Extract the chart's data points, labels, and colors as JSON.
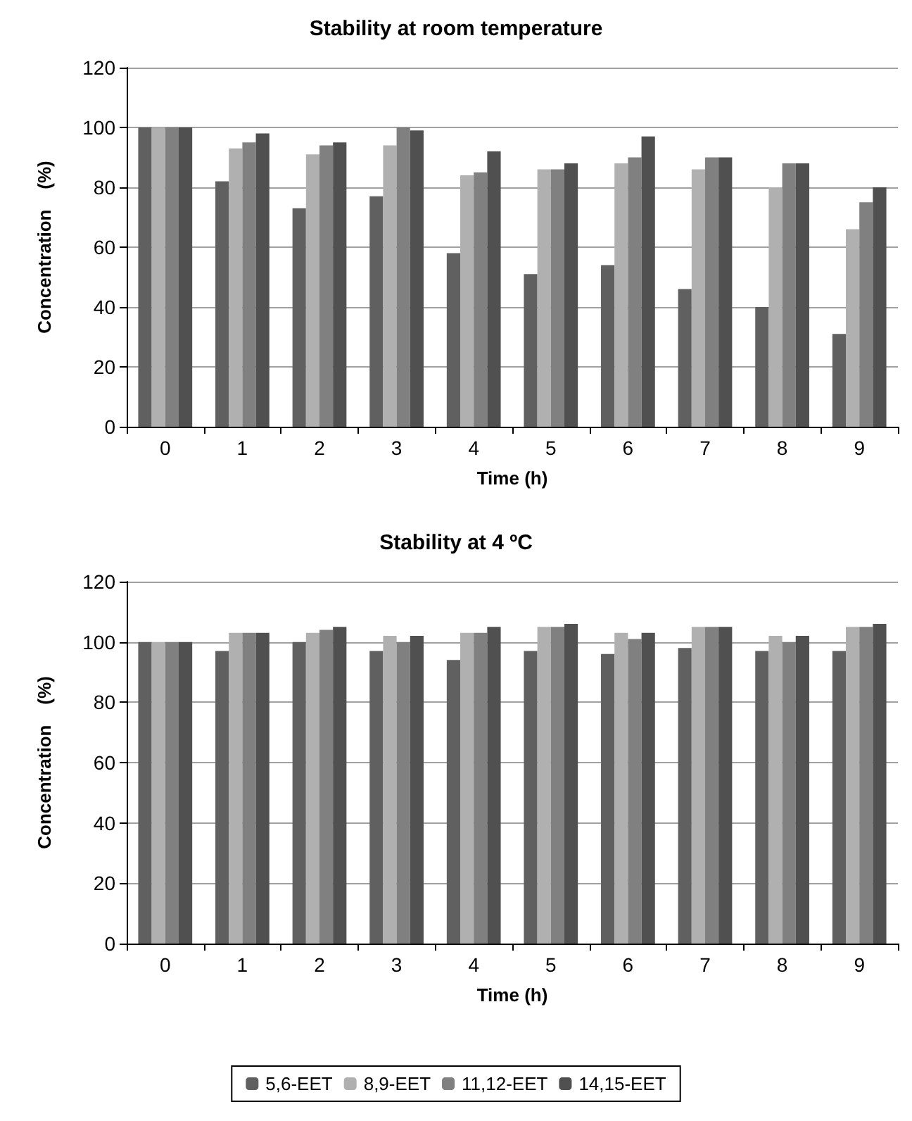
{
  "chart_data": [
    {
      "type": "bar",
      "title": "Stability at room temperature",
      "xlabel": "Time (h)",
      "ylabel": "Concentration    (%)",
      "categories": [
        "0",
        "1",
        "2",
        "3",
        "4",
        "5",
        "6",
        "7",
        "8",
        "9"
      ],
      "series": [
        {
          "color": "#606060",
          "values": [
            100,
            82,
            73,
            77,
            58,
            51,
            54,
            46,
            40,
            31
          ]
        },
        {
          "color": "#b0b0b0",
          "values": [
            100,
            93,
            91,
            94,
            84,
            86,
            88,
            86,
            80,
            66
          ]
        },
        {
          "color": "#808080",
          "values": [
            100,
            95,
            94,
            100,
            85,
            86,
            90,
            90,
            88,
            75
          ]
        },
        {
          "color": "#505050",
          "values": [
            100,
            98,
            95,
            99,
            92,
            88,
            97,
            90,
            88,
            80
          ]
        }
      ],
      "ylim": [
        0,
        120
      ],
      "yticks": [
        0,
        20,
        40,
        60,
        80,
        100,
        120
      ],
      "grid": "y",
      "legend": false
    },
    {
      "type": "bar",
      "title": "Stability at 4 ºC",
      "xlabel": "Time (h)",
      "ylabel": "Concentration    (%)",
      "categories": [
        "0",
        "1",
        "2",
        "3",
        "4",
        "5",
        "6",
        "7",
        "8",
        "9"
      ],
      "series": [
        {
          "name": "5,6-EET",
          "color": "#606060",
          "values": [
            100,
            97,
            100,
            97,
            94,
            97,
            96,
            98,
            97,
            97
          ]
        },
        {
          "name": "8,9-EET",
          "color": "#b0b0b0",
          "values": [
            100,
            103,
            103,
            102,
            103,
            105,
            103,
            105,
            102,
            105
          ]
        },
        {
          "name": "11,12-EET",
          "color": "#808080",
          "values": [
            100,
            103,
            104,
            100,
            103,
            105,
            101,
            105,
            100,
            105
          ]
        },
        {
          "name": "14,15-EET",
          "color": "#505050",
          "values": [
            100,
            103,
            105,
            102,
            105,
            106,
            103,
            105,
            102,
            106
          ]
        }
      ],
      "ylim": [
        0,
        120
      ],
      "yticks": [
        0,
        20,
        40,
        60,
        80,
        100,
        120
      ],
      "grid": "y",
      "legend": "bottom"
    }
  ]
}
